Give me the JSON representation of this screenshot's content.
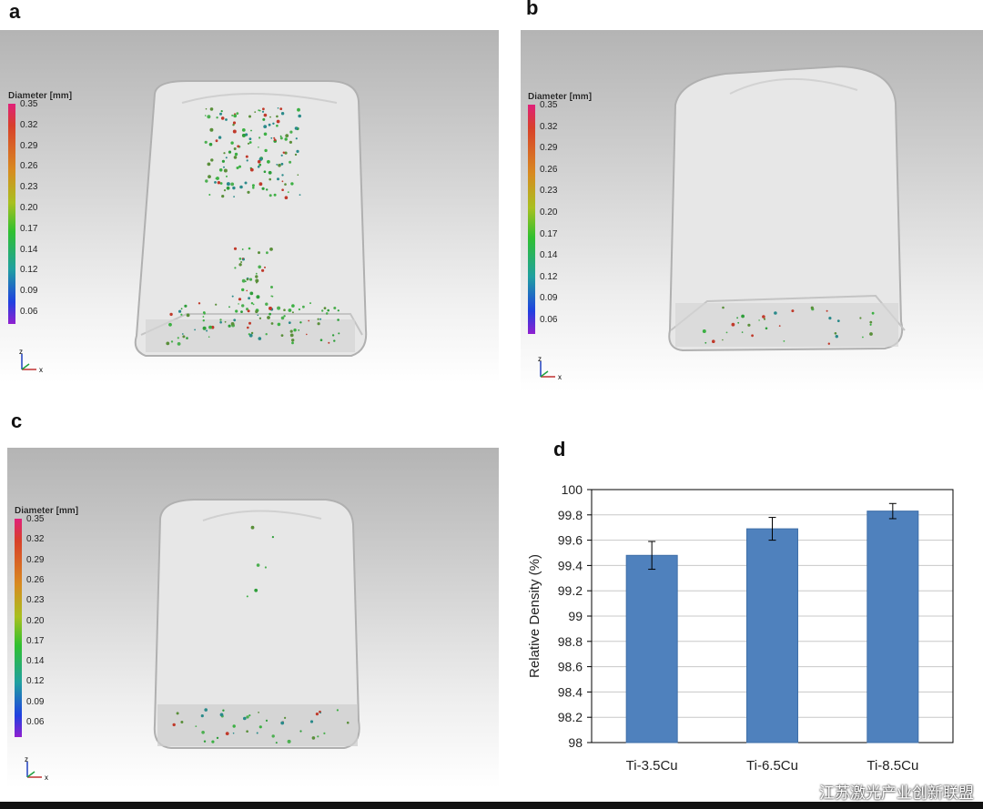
{
  "panels": {
    "a": {
      "letter": "a"
    },
    "b": {
      "letter": "b"
    },
    "c": {
      "letter": "c"
    },
    "d": {
      "letter": "d"
    }
  },
  "legend": {
    "title": "Diameter [mm]",
    "ticks": [
      "0.35",
      "0.32",
      "0.29",
      "0.26",
      "0.23",
      "0.20",
      "0.17",
      "0.14",
      "0.12",
      "0.09",
      "0.06"
    ]
  },
  "axes_triad": {
    "z": "z",
    "x": "x"
  },
  "watermark": "江苏激光产业创新联盟",
  "colors": {
    "bar_fill": "#4f81bd",
    "bar_stroke": "#3f6fa8",
    "chart_border": "#000000",
    "gridline": "#c8c8c8"
  },
  "chart_data": {
    "type": "bar",
    "categories": [
      "Ti-3.5Cu",
      "Ti-6.5Cu",
      "Ti-8.5Cu"
    ],
    "values": [
      99.48,
      99.69,
      99.83
    ],
    "errors": [
      0.11,
      0.09,
      0.06
    ],
    "title": "",
    "xlabel": "",
    "ylabel": "Relative Density (%)",
    "ylim": [
      98,
      100
    ],
    "yticks": [
      "98",
      "98.2",
      "98.4",
      "98.6",
      "98.8",
      "99",
      "99.2",
      "99.4",
      "99.6",
      "99.8",
      "100"
    ],
    "grid": true,
    "legend": "none"
  }
}
